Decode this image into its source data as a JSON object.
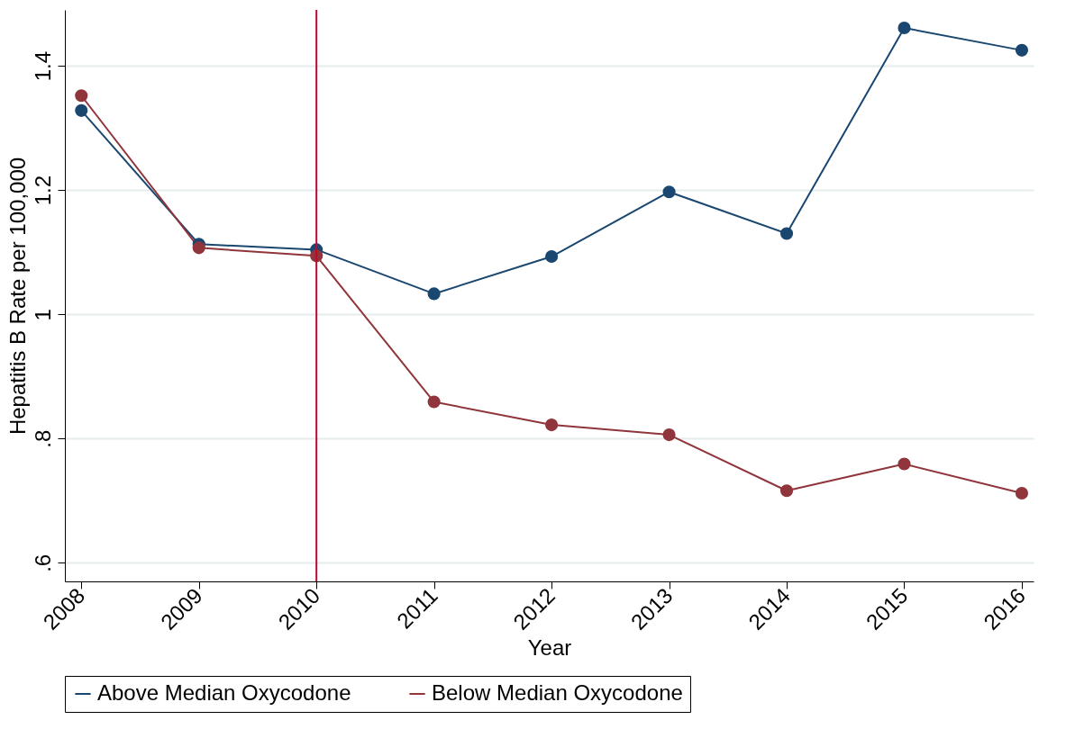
{
  "chart_data": {
    "type": "line",
    "xlabel": "Year",
    "ylabel": "Hepatitis B Rate per 100,000",
    "x": [
      2008,
      2009,
      2010,
      2011,
      2012,
      2013,
      2014,
      2015,
      2016
    ],
    "series": [
      {
        "name": "Above Median Oxycodone",
        "color": "#1a476f",
        "values": [
          1.328,
          1.113,
          1.104,
          1.033,
          1.093,
          1.197,
          1.13,
          1.461,
          1.425
        ]
      },
      {
        "name": "Below Median Oxycodone",
        "color": "#90353b",
        "values": [
          1.352,
          1.107,
          1.094,
          0.859,
          0.822,
          0.806,
          0.716,
          0.759,
          0.712
        ]
      }
    ],
    "xlim": [
      2007.86,
      2016.1
    ],
    "xticks": [
      2008,
      2009,
      2010,
      2011,
      2012,
      2013,
      2014,
      2015,
      2016
    ],
    "ylim": [
      0.57,
      1.49
    ],
    "yticks": [
      {
        "value": 0.6,
        "label": ".6"
      },
      {
        "value": 0.8,
        "label": ".8"
      },
      1,
      1.2,
      1.4
    ],
    "ref_lines": [
      {
        "axis": "x",
        "value": 2010,
        "color": "#c10534"
      }
    ],
    "grid": "y",
    "legend": "bottom",
    "marker": "circle",
    "line_style": "solid"
  }
}
